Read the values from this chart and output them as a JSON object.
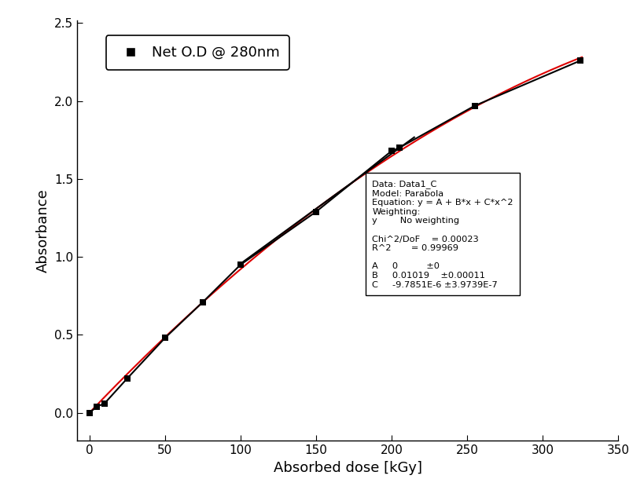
{
  "x_data": [
    0,
    5,
    10,
    25,
    50,
    75,
    100,
    150,
    200,
    205,
    255,
    325
  ],
  "y_data": [
    0.0,
    0.04,
    0.06,
    0.22,
    0.48,
    0.71,
    0.95,
    1.29,
    1.68,
    1.7,
    1.97,
    2.26
  ],
  "A": 0,
  "B": 0.01019,
  "C": -9.7851e-06,
  "xlim": [
    -8,
    348
  ],
  "ylim": [
    -0.18,
    2.52
  ],
  "xticks": [
    0,
    50,
    100,
    150,
    200,
    250,
    300,
    350
  ],
  "yticks": [
    0.0,
    0.5,
    1.0,
    1.5,
    2.0,
    2.5
  ],
  "xlabel": "Absorbed dose [kGy]",
  "ylabel": "Absorbance",
  "legend_label": "Net O.D @ 280nm",
  "tangent_x0": 160,
  "tangent_xmin": 100,
  "tangent_xmax": 215,
  "data_color": "black",
  "fit_color": "#dd0000",
  "tangent_color": "black",
  "background": "white",
  "figsize": [
    8.19,
    6.38
  ]
}
